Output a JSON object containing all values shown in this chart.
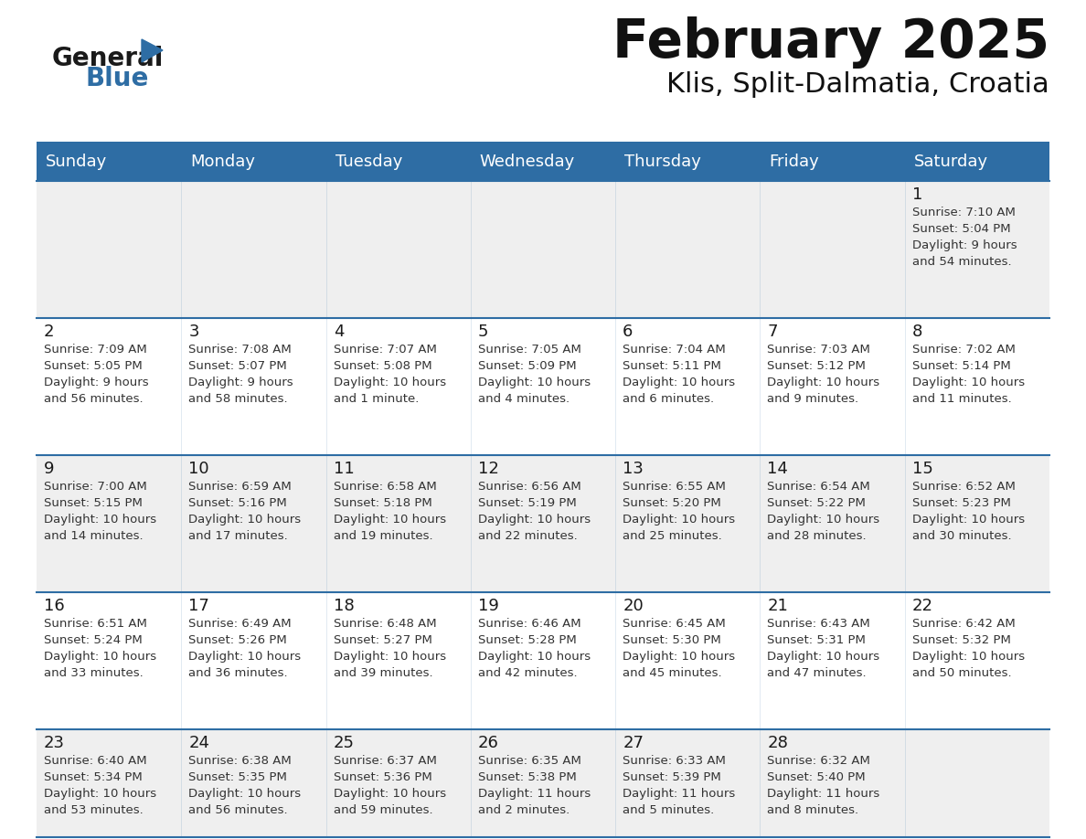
{
  "title": "February 2025",
  "subtitle": "Klis, Split-Dalmatia, Croatia",
  "header_bg": "#2E6DA4",
  "header_text_color": "#FFFFFF",
  "border_color": "#2E6DA4",
  "text_color": "#333333",
  "day_number_color": "#1a1a1a",
  "cell_bg_even": "#EFEFEF",
  "cell_bg_odd": "#FFFFFF",
  "logo_general_color": "#1a1a1a",
  "logo_blue_color": "#2E6DA4",
  "logo_triangle_color": "#2E6DA4",
  "day_headers": [
    "Sunday",
    "Monday",
    "Tuesday",
    "Wednesday",
    "Thursday",
    "Friday",
    "Saturday"
  ],
  "calendar": [
    [
      null,
      null,
      null,
      null,
      null,
      null,
      {
        "day": "1",
        "sunrise": "7:10 AM",
        "sunset": "5:04 PM",
        "daylight": "9 hours\nand 54 minutes."
      }
    ],
    [
      {
        "day": "2",
        "sunrise": "7:09 AM",
        "sunset": "5:05 PM",
        "daylight": "9 hours\nand 56 minutes."
      },
      {
        "day": "3",
        "sunrise": "7:08 AM",
        "sunset": "5:07 PM",
        "daylight": "9 hours\nand 58 minutes."
      },
      {
        "day": "4",
        "sunrise": "7:07 AM",
        "sunset": "5:08 PM",
        "daylight": "10 hours\nand 1 minute."
      },
      {
        "day": "5",
        "sunrise": "7:05 AM",
        "sunset": "5:09 PM",
        "daylight": "10 hours\nand 4 minutes."
      },
      {
        "day": "6",
        "sunrise": "7:04 AM",
        "sunset": "5:11 PM",
        "daylight": "10 hours\nand 6 minutes."
      },
      {
        "day": "7",
        "sunrise": "7:03 AM",
        "sunset": "5:12 PM",
        "daylight": "10 hours\nand 9 minutes."
      },
      {
        "day": "8",
        "sunrise": "7:02 AM",
        "sunset": "5:14 PM",
        "daylight": "10 hours\nand 11 minutes."
      }
    ],
    [
      {
        "day": "9",
        "sunrise": "7:00 AM",
        "sunset": "5:15 PM",
        "daylight": "10 hours\nand 14 minutes."
      },
      {
        "day": "10",
        "sunrise": "6:59 AM",
        "sunset": "5:16 PM",
        "daylight": "10 hours\nand 17 minutes."
      },
      {
        "day": "11",
        "sunrise": "6:58 AM",
        "sunset": "5:18 PM",
        "daylight": "10 hours\nand 19 minutes."
      },
      {
        "day": "12",
        "sunrise": "6:56 AM",
        "sunset": "5:19 PM",
        "daylight": "10 hours\nand 22 minutes."
      },
      {
        "day": "13",
        "sunrise": "6:55 AM",
        "sunset": "5:20 PM",
        "daylight": "10 hours\nand 25 minutes."
      },
      {
        "day": "14",
        "sunrise": "6:54 AM",
        "sunset": "5:22 PM",
        "daylight": "10 hours\nand 28 minutes."
      },
      {
        "day": "15",
        "sunrise": "6:52 AM",
        "sunset": "5:23 PM",
        "daylight": "10 hours\nand 30 minutes."
      }
    ],
    [
      {
        "day": "16",
        "sunrise": "6:51 AM",
        "sunset": "5:24 PM",
        "daylight": "10 hours\nand 33 minutes."
      },
      {
        "day": "17",
        "sunrise": "6:49 AM",
        "sunset": "5:26 PM",
        "daylight": "10 hours\nand 36 minutes."
      },
      {
        "day": "18",
        "sunrise": "6:48 AM",
        "sunset": "5:27 PM",
        "daylight": "10 hours\nand 39 minutes."
      },
      {
        "day": "19",
        "sunrise": "6:46 AM",
        "sunset": "5:28 PM",
        "daylight": "10 hours\nand 42 minutes."
      },
      {
        "day": "20",
        "sunrise": "6:45 AM",
        "sunset": "5:30 PM",
        "daylight": "10 hours\nand 45 minutes."
      },
      {
        "day": "21",
        "sunrise": "6:43 AM",
        "sunset": "5:31 PM",
        "daylight": "10 hours\nand 47 minutes."
      },
      {
        "day": "22",
        "sunrise": "6:42 AM",
        "sunset": "5:32 PM",
        "daylight": "10 hours\nand 50 minutes."
      }
    ],
    [
      {
        "day": "23",
        "sunrise": "6:40 AM",
        "sunset": "5:34 PM",
        "daylight": "10 hours\nand 53 minutes."
      },
      {
        "day": "24",
        "sunrise": "6:38 AM",
        "sunset": "5:35 PM",
        "daylight": "10 hours\nand 56 minutes."
      },
      {
        "day": "25",
        "sunrise": "6:37 AM",
        "sunset": "5:36 PM",
        "daylight": "10 hours\nand 59 minutes."
      },
      {
        "day": "26",
        "sunrise": "6:35 AM",
        "sunset": "5:38 PM",
        "daylight": "11 hours\nand 2 minutes."
      },
      {
        "day": "27",
        "sunrise": "6:33 AM",
        "sunset": "5:39 PM",
        "daylight": "11 hours\nand 5 minutes."
      },
      {
        "day": "28",
        "sunrise": "6:32 AM",
        "sunset": "5:40 PM",
        "daylight": "11 hours\nand 8 minutes."
      },
      null
    ]
  ]
}
